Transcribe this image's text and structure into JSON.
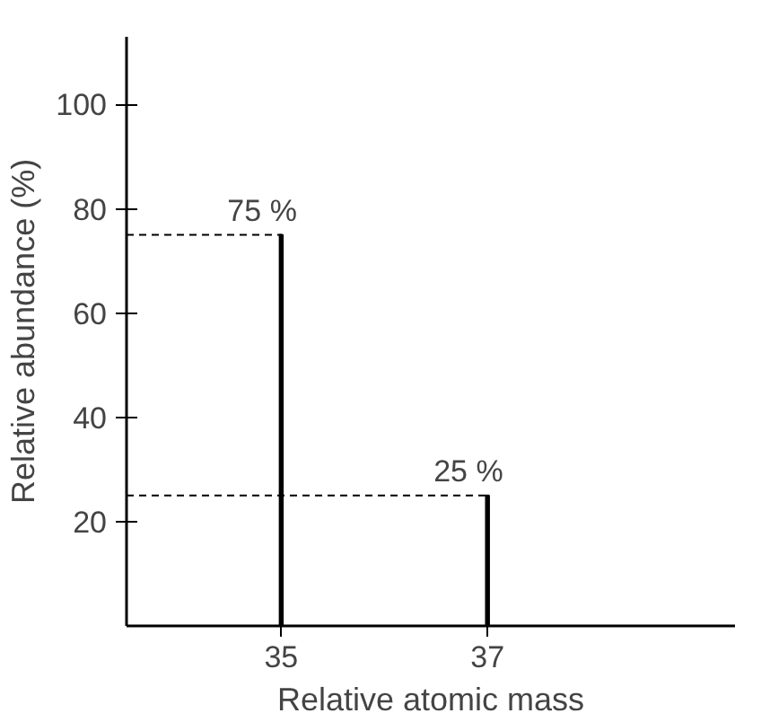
{
  "chart_data": {
    "type": "bar",
    "xlabel": "Relative atomic mass",
    "ylabel": "Relative abundance (%)",
    "x": [
      35,
      37
    ],
    "values": [
      75,
      25
    ],
    "color": "#000000",
    "value_labels": [
      "75 %",
      "25 %"
    ],
    "xlim": [
      33.5,
      39.4
    ],
    "ylim": [
      0,
      113
    ],
    "xticks": [
      35,
      37
    ],
    "yticks": [
      20,
      40,
      60,
      80,
      100
    ],
    "ref_lines": [
      {
        "axis": "y",
        "value": 75,
        "line_style": "dashed",
        "color": "#000000"
      },
      {
        "axis": "y",
        "value": 25,
        "line_style": "dashed",
        "color": "#000000"
      }
    ],
    "grid": false
  }
}
